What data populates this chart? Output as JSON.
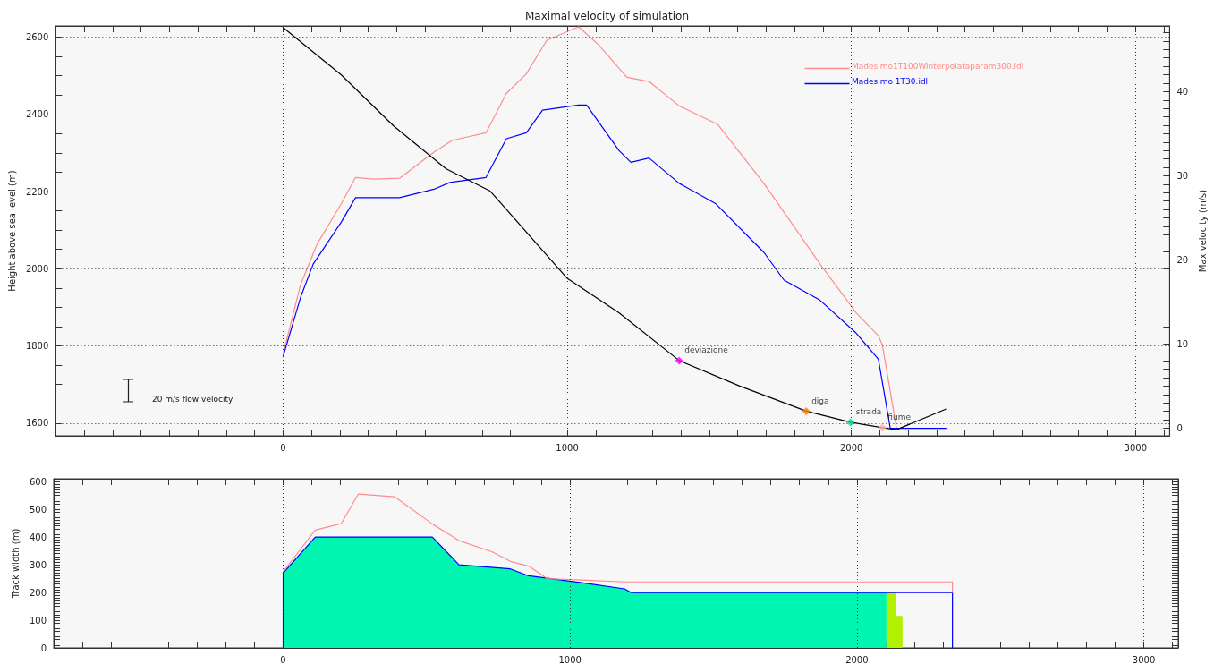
{
  "chart_data": [
    {
      "type": "line",
      "title": "Maximal velocity of simulation",
      "ylabel": "Height above sea level (m)",
      "y2label": "Max velocity (m/s)",
      "xlim": [
        -800,
        3120
      ],
      "xticks": [
        {
          "value": -700,
          "label": null
        },
        {
          "value": -600,
          "label": null
        },
        {
          "value": -500,
          "label": null
        },
        {
          "value": -400,
          "label": null
        },
        {
          "value": -300,
          "label": null
        },
        {
          "value": -200,
          "label": null
        },
        {
          "value": -100,
          "label": null
        },
        0,
        {
          "value": 100,
          "label": null
        },
        {
          "value": 200,
          "label": null
        },
        {
          "value": 300,
          "label": null
        },
        {
          "value": 400,
          "label": null
        },
        {
          "value": 500,
          "label": null
        },
        {
          "value": 600,
          "label": null
        },
        {
          "value": 700,
          "label": null
        },
        {
          "value": 800,
          "label": null
        },
        {
          "value": 900,
          "label": null
        },
        1000,
        {
          "value": 1100,
          "label": null
        },
        {
          "value": 1200,
          "label": null
        },
        {
          "value": 1300,
          "label": null
        },
        {
          "value": 1400,
          "label": null
        },
        {
          "value": 1500,
          "label": null
        },
        {
          "value": 1600,
          "label": null
        },
        {
          "value": 1700,
          "label": null
        },
        {
          "value": 1800,
          "label": null
        },
        {
          "value": 1900,
          "label": null
        },
        2000,
        {
          "value": 2100,
          "label": null
        },
        {
          "value": 2200,
          "label": null
        },
        {
          "value": 2300,
          "label": null
        },
        {
          "value": 2400,
          "label": null
        },
        {
          "value": 2500,
          "label": null
        },
        {
          "value": 2600,
          "label": null
        },
        {
          "value": 2700,
          "label": null
        },
        {
          "value": 2800,
          "label": null
        },
        {
          "value": 2900,
          "label": null
        },
        3000,
        {
          "value": 3100,
          "label": null
        }
      ],
      "ylim": [
        1567,
        2629
      ],
      "yticks": [
        1600,
        {
          "value": 1650,
          "label": null
        },
        {
          "value": 1700,
          "label": null
        },
        {
          "value": 1750,
          "label": null
        },
        1800,
        {
          "value": 1850,
          "label": null
        },
        {
          "value": 1900,
          "label": null
        },
        {
          "value": 1950,
          "label": null
        },
        2000,
        {
          "value": 2050,
          "label": null
        },
        {
          "value": 2100,
          "label": null
        },
        {
          "value": 2150,
          "label": null
        },
        2200,
        {
          "value": 2250,
          "label": null
        },
        {
          "value": 2300,
          "label": null
        },
        {
          "value": 2350,
          "label": null
        },
        2400,
        {
          "value": 2450,
          "label": null
        },
        {
          "value": 2500,
          "label": null
        },
        {
          "value": 2550,
          "label": null
        },
        2600
      ],
      "y2lim": [
        -0.9,
        47.8
      ],
      "y2ticks": [
        0,
        {
          "value": 1,
          "label": null
        },
        {
          "value": 2,
          "label": null
        },
        {
          "value": 3,
          "label": null
        },
        {
          "value": 4,
          "label": null
        },
        {
          "value": 5,
          "label": null
        },
        {
          "value": 6,
          "label": null
        },
        {
          "value": 7,
          "label": null
        },
        {
          "value": 8,
          "label": null
        },
        {
          "value": 9,
          "label": null
        },
        10,
        {
          "value": 11,
          "label": null
        },
        {
          "value": 12,
          "label": null
        },
        {
          "value": 13,
          "label": null
        },
        {
          "value": 14,
          "label": null
        },
        {
          "value": 15,
          "label": null
        },
        {
          "value": 16,
          "label": null
        },
        {
          "value": 17,
          "label": null
        },
        {
          "value": 18,
          "label": null
        },
        {
          "value": 19,
          "label": null
        },
        20,
        {
          "value": 21,
          "label": null
        },
        {
          "value": 22,
          "label": null
        },
        {
          "value": 23,
          "label": null
        },
        {
          "value": 24,
          "label": null
        },
        {
          "value": 25,
          "label": null
        },
        {
          "value": 26,
          "label": null
        },
        {
          "value": 27,
          "label": null
        },
        {
          "value": 28,
          "label": null
        },
        {
          "value": 29,
          "label": null
        },
        30,
        {
          "value": 31,
          "label": null
        },
        {
          "value": 32,
          "label": null
        },
        {
          "value": 33,
          "label": null
        },
        {
          "value": 34,
          "label": null
        },
        {
          "value": 35,
          "label": null
        },
        {
          "value": 36,
          "label": null
        },
        {
          "value": 37,
          "label": null
        },
        {
          "value": 38,
          "label": null
        },
        {
          "value": 39,
          "label": null
        },
        40,
        {
          "value": 41,
          "label": null
        },
        {
          "value": 42,
          "label": null
        },
        {
          "value": 43,
          "label": null
        },
        {
          "value": 44,
          "label": null
        },
        {
          "value": 45,
          "label": null
        },
        {
          "value": 46,
          "label": null
        },
        {
          "value": 47,
          "label": null
        }
      ],
      "grid": true,
      "legend": "top right",
      "marker": "none",
      "series": [
        {
          "name": "Madesimo1T100Winterpolataparam300.idl",
          "color": "#ff8c8c",
          "axis": "y2",
          "x": [
            0,
            62,
            120,
            205,
            255,
            318,
            410,
            531,
            594,
            714,
            786,
            856,
            928,
            1040,
            1112,
            1210,
            1288,
            1394,
            1530,
            1692,
            1890,
            2017,
            2095,
            2109,
            2159
          ],
          "values": [
            8.8,
            17.1,
            21.9,
            26.7,
            29.8,
            29.6,
            29.7,
            32.8,
            34.2,
            35.1,
            39.8,
            42.1,
            46.1,
            47.7,
            45.5,
            41.7,
            41.2,
            38.3,
            36.1,
            29.1,
            19.5,
            13.7,
            11.0,
            9.9,
            0
          ]
        },
        {
          "name": "Madesimo 1T30.idl",
          "color": "#0000ff",
          "axis": "y2",
          "x": [
            0,
            62,
            106,
            205,
            255,
            410,
            531,
            587,
            714,
            786,
            856,
            913,
            1040,
            1068,
            1182,
            1224,
            1288,
            1394,
            1522,
            1692,
            1763,
            1890,
            2017,
            2095,
            2137,
            2333
          ],
          "values": [
            8.5,
            15.6,
            19.5,
            24.5,
            27.4,
            27.4,
            28.4,
            29.2,
            29.8,
            34.4,
            35.1,
            37.8,
            38.4,
            38.4,
            33,
            31.6,
            32.1,
            29.1,
            26.7,
            20.9,
            17.6,
            15.2,
            11.3,
            8.2,
            0,
            0
          ]
        },
        {
          "color": "#000000",
          "x": [
            0,
            205,
            389,
            573,
            729,
            1000,
            1182,
            1394,
            1607,
            1841,
            1997,
            2109,
            2159,
            2332
          ],
          "values": [
            2625,
            2502,
            2370,
            2259,
            2201,
            1975,
            1886,
            1762,
            1696,
            1631,
            1602,
            1588,
            1583,
            1636
          ]
        },
        {
          "type": "scatter",
          "marker": "diamond",
          "x": [
            1394,
            1841,
            1997,
            2109
          ],
          "values": [
            1762,
            1631,
            1602,
            1588
          ],
          "colors": [
            "#ff00ff",
            "#ff8000",
            "#00e0a0",
            "#ffb0b0"
          ]
        }
      ],
      "annotations": [
        {
          "text": "deviazione",
          "x": 1394,
          "y": 1762
        },
        {
          "text": "diga",
          "x": 1841,
          "y": 1631
        },
        {
          "text": "strada",
          "x": 1997,
          "y": 1602
        },
        {
          "text": "fiume",
          "x": 2109,
          "y": 1588
        },
        "20 m/s flow velocity"
      ]
    },
    {
      "type": "line",
      "ylabel": "Track width (m)",
      "xlim": [
        -800,
        3120
      ],
      "xticks": [
        {
          "value": -700,
          "label": null
        },
        {
          "value": -600,
          "label": null
        },
        {
          "value": -500,
          "label": null
        },
        {
          "value": -400,
          "label": null
        },
        {
          "value": -300,
          "label": null
        },
        {
          "value": -200,
          "label": null
        },
        {
          "value": -100,
          "label": null
        },
        0,
        {
          "value": 100,
          "label": null
        },
        {
          "value": 200,
          "label": null
        },
        {
          "value": 300,
          "label": null
        },
        {
          "value": 400,
          "label": null
        },
        {
          "value": 500,
          "label": null
        },
        {
          "value": 600,
          "label": null
        },
        {
          "value": 700,
          "label": null
        },
        {
          "value": 800,
          "label": null
        },
        {
          "value": 900,
          "label": null
        },
        1000,
        {
          "value": 1100,
          "label": null
        },
        {
          "value": 1200,
          "label": null
        },
        {
          "value": 1300,
          "label": null
        },
        {
          "value": 1400,
          "label": null
        },
        {
          "value": 1500,
          "label": null
        },
        {
          "value": 1600,
          "label": null
        },
        {
          "value": 1700,
          "label": null
        },
        {
          "value": 1800,
          "label": null
        },
        {
          "value": 1900,
          "label": null
        },
        2000,
        {
          "value": 2100,
          "label": null
        },
        {
          "value": 2200,
          "label": null
        },
        {
          "value": 2300,
          "label": null
        },
        {
          "value": 2400,
          "label": null
        },
        {
          "value": 2500,
          "label": null
        },
        {
          "value": 2600,
          "label": null
        },
        {
          "value": 2700,
          "label": null
        },
        {
          "value": 2800,
          "label": null
        },
        {
          "value": 2900,
          "label": null
        },
        3000,
        {
          "value": 3100,
          "label": null
        }
      ],
      "ylim": [
        0,
        610
      ],
      "yticks": [
        0,
        {
          "value": 10,
          "label": null
        },
        {
          "value": 20,
          "label": null
        },
        {
          "value": 30,
          "label": null
        },
        {
          "value": 40,
          "label": null
        },
        {
          "value": 50,
          "label": null
        },
        {
          "value": 60,
          "label": null
        },
        {
          "value": 70,
          "label": null
        },
        {
          "value": 80,
          "label": null
        },
        {
          "value": 90,
          "label": null
        },
        100,
        {
          "value": 110,
          "label": null
        },
        {
          "value": 120,
          "label": null
        },
        {
          "value": 130,
          "label": null
        },
        {
          "value": 140,
          "label": null
        },
        {
          "value": 150,
          "label": null
        },
        {
          "value": 160,
          "label": null
        },
        {
          "value": 170,
          "label": null
        },
        {
          "value": 180,
          "label": null
        },
        {
          "value": 190,
          "label": null
        },
        200,
        {
          "value": 210,
          "label": null
        },
        {
          "value": 220,
          "label": null
        },
        {
          "value": 230,
          "label": null
        },
        {
          "value": 240,
          "label": null
        },
        {
          "value": 250,
          "label": null
        },
        {
          "value": 260,
          "label": null
        },
        {
          "value": 270,
          "label": null
        },
        {
          "value": 280,
          "label": null
        },
        {
          "value": 290,
          "label": null
        },
        300,
        {
          "value": 310,
          "label": null
        },
        {
          "value": 320,
          "label": null
        },
        {
          "value": 330,
          "label": null
        },
        {
          "value": 340,
          "label": null
        },
        {
          "value": 350,
          "label": null
        },
        {
          "value": 360,
          "label": null
        },
        {
          "value": 370,
          "label": null
        },
        {
          "value": 380,
          "label": null
        },
        {
          "value": 390,
          "label": null
        },
        400,
        {
          "value": 410,
          "label": null
        },
        {
          "value": 420,
          "label": null
        },
        {
          "value": 430,
          "label": null
        },
        {
          "value": 440,
          "label": null
        },
        {
          "value": 450,
          "label": null
        },
        {
          "value": 460,
          "label": null
        },
        {
          "value": 470,
          "label": null
        },
        {
          "value": 480,
          "label": null
        },
        {
          "value": 490,
          "label": null
        },
        500,
        {
          "value": 510,
          "label": null
        },
        {
          "value": 520,
          "label": null
        },
        {
          "value": 530,
          "label": null
        },
        {
          "value": 540,
          "label": null
        },
        {
          "value": 550,
          "label": null
        },
        {
          "value": 560,
          "label": null
        },
        {
          "value": 570,
          "label": null
        },
        {
          "value": 580,
          "label": null
        },
        {
          "value": 590,
          "label": null
        },
        600
      ],
      "grid": "x",
      "marker": "none",
      "series": [
        {
          "type": "area",
          "color": "#00f5b0",
          "x": [
            0,
            112,
            520,
            613,
            792,
            856,
            1040,
            1190,
            1212,
            2103
          ],
          "values": [
            270,
            400,
            400,
            300,
            285,
            260,
            235,
            213,
            200,
            200
          ]
        },
        {
          "type": "area",
          "color": "#b0f000",
          "x": [
            2103,
            2137,
            2137,
            2159
          ],
          "values": [
            200,
            200,
            115,
            115
          ]
        },
        {
          "color": "#0000ff",
          "x": [
            0,
            0,
            112,
            520,
            613,
            792,
            856,
            1040,
            1190,
            1212,
            2333,
            2333
          ],
          "values": [
            0,
            270,
            400,
            400,
            300,
            285,
            260,
            235,
            213,
            200,
            200,
            0
          ]
        },
        {
          "color": "#ff8c8c",
          "x": [
            0,
            112,
            202,
            262,
            389,
            523,
            613,
            729,
            792,
            856,
            920,
            1040,
            1190,
            2333,
            2333
          ],
          "values": [
            275,
            425,
            448,
            555,
            545,
            445,
            387,
            346,
            312,
            295,
            250,
            245,
            238,
            238,
            200
          ]
        }
      ]
    }
  ]
}
